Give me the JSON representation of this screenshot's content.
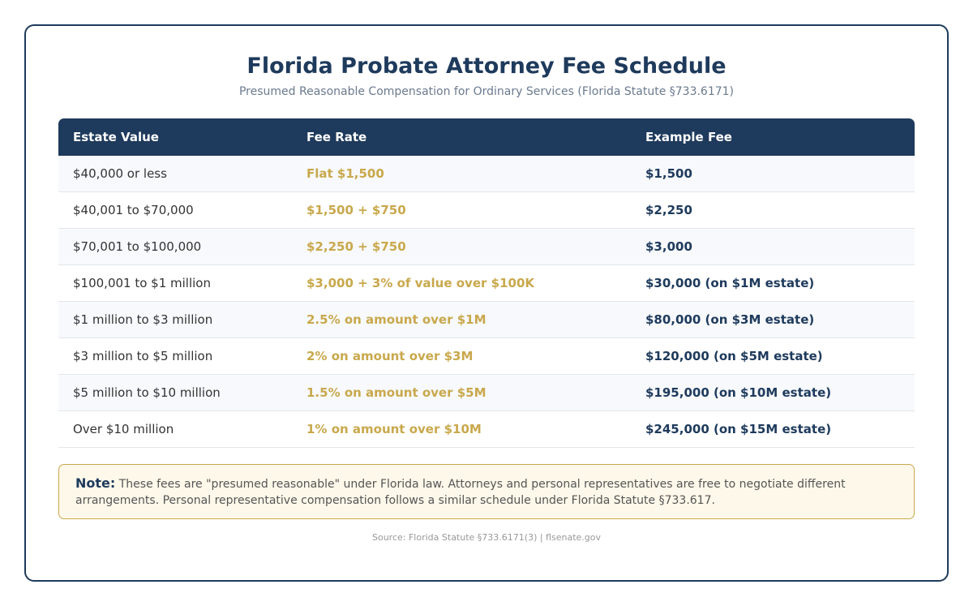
{
  "title": "Florida Probate Attorney Fee Schedule",
  "subtitle": "Presumed Reasonable Compensation for Ordinary Services (Florida Statute §733.6171)",
  "table": {
    "headers": [
      "Estate Value",
      "Fee Rate",
      "Example Fee"
    ],
    "rows": [
      [
        "$40,000 or less",
        "Flat $1,500",
        "$1,500"
      ],
      [
        "$40,001 to $70,000",
        "$1,500 + $750",
        "$2,250"
      ],
      [
        "$70,001 to $100,000",
        "$2,250 + $750",
        "$3,000"
      ],
      [
        "$100,001 to $1 million",
        "$3,000 + 3% of value over $100K",
        "$30,000 (on $1M estate)"
      ],
      [
        "$1 million to $3 million",
        "2.5% on amount over $1M",
        "$80,000 (on $3M estate)"
      ],
      [
        "$3 million to $5 million",
        "2% on amount over $3M",
        "$120,000 (on $5M estate)"
      ],
      [
        "$5 million to $10 million",
        "1.5% on amount over $5M",
        "$195,000 (on $10M estate)"
      ],
      [
        "Over $10 million",
        "1% on amount over $10M",
        "$245,000 (on $15M estate)"
      ]
    ]
  },
  "note": {
    "label": "Note:",
    "text": " These fees are \"presumed reasonable\" under Florida law. Attorneys and personal representatives are free to negotiate different arrangements. Personal representative compensation follows a similar schedule under Florida Statute §733.617."
  },
  "source": "Source: Florida Statute §733.6171(3) | flsenate.gov",
  "colors": {
    "navy": "#1e3a5c",
    "gold": "#c9a84c"
  }
}
